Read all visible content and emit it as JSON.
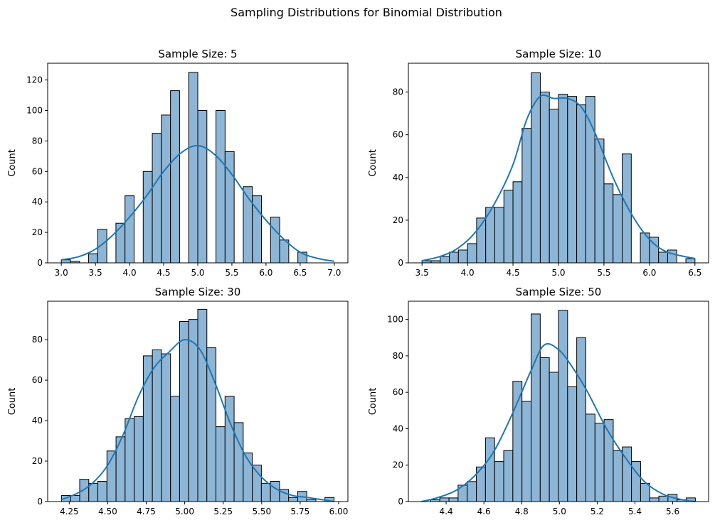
{
  "suptitle": "Sampling Distributions for Binomial Distribution",
  "colors": {
    "bar_fill": "#8db5d5",
    "bar_edge": "#000000",
    "kde": "#1f77b4"
  },
  "chart_data": [
    {
      "type": "bar",
      "title": "Sample Size: 5",
      "ylabel": "Count",
      "xlabel": "",
      "bin_width": 0.13333,
      "bin_start": 3.0,
      "xlim": [
        2.8,
        7.2
      ],
      "ylim": [
        0,
        131
      ],
      "xticks": [
        3.0,
        3.5,
        4.0,
        4.5,
        5.0,
        5.5,
        6.0,
        6.5,
        7.0
      ],
      "xtick_labels": [
        "3.0",
        "3.5",
        "4.0",
        "4.5",
        "5.0",
        "5.5",
        "6.0",
        "6.5",
        "7.0"
      ],
      "yticks": [
        0,
        20,
        40,
        60,
        80,
        100,
        120
      ],
      "counts": [
        2,
        1,
        0,
        6,
        22,
        0,
        26,
        44,
        0,
        60,
        85,
        97,
        113,
        0,
        125,
        100,
        0,
        100,
        73,
        0,
        50,
        44,
        0,
        30,
        15,
        0,
        7,
        0,
        0,
        0
      ],
      "kde": {
        "x": [
          3.0,
          3.25,
          3.5,
          3.75,
          4.0,
          4.25,
          4.5,
          4.75,
          5.0,
          5.25,
          5.5,
          5.75,
          6.0,
          6.25,
          6.5,
          6.75,
          7.0
        ],
        "y": [
          2,
          4,
          9,
          18,
          30,
          44,
          60,
          72,
          77,
          71,
          58,
          42,
          28,
          16,
          7,
          3,
          1
        ]
      }
    },
    {
      "type": "bar",
      "title": "Sample Size: 10",
      "ylabel": "Count",
      "xlabel": "",
      "bin_width": 0.1,
      "bin_start": 3.5,
      "xlim": [
        3.35,
        6.65
      ],
      "ylim": [
        0,
        93.5
      ],
      "xticks": [
        3.5,
        4.0,
        4.5,
        5.0,
        5.5,
        6.0,
        6.5
      ],
      "xtick_labels": [
        "3.5",
        "4.0",
        "4.5",
        "5.0",
        "5.5",
        "6.0",
        "6.5"
      ],
      "yticks": [
        0,
        20,
        40,
        60,
        80
      ],
      "counts": [
        1,
        1,
        3,
        5,
        6,
        9,
        21,
        26,
        26,
        34,
        38,
        63,
        89,
        80,
        72,
        79,
        78,
        74,
        78,
        58,
        37,
        32,
        51,
        0,
        14,
        12,
        5,
        6,
        0,
        2
      ],
      "kde": {
        "x": [
          3.5,
          3.7,
          3.9,
          4.1,
          4.3,
          4.5,
          4.65,
          4.8,
          4.95,
          5.1,
          5.25,
          5.4,
          5.6,
          5.8,
          6.0,
          6.2,
          6.5
        ],
        "y": [
          1,
          3,
          7,
          15,
          28,
          46,
          67,
          78,
          77,
          77,
          73,
          61,
          40,
          23,
          11,
          5,
          2
        ]
      }
    },
    {
      "type": "bar",
      "title": "Sample Size: 30",
      "ylabel": "Count",
      "xlabel": "",
      "bin_width": 0.059,
      "bin_start": 4.2,
      "xlim": [
        4.11,
        6.06
      ],
      "ylim": [
        0,
        99
      ],
      "xticks": [
        4.25,
        4.5,
        4.75,
        5.0,
        5.25,
        5.5,
        5.75,
        6.0
      ],
      "xtick_labels": [
        "4.25",
        "4.50",
        "4.75",
        "5.00",
        "5.25",
        "5.50",
        "5.75",
        "6.00"
      ],
      "yticks": [
        0,
        20,
        40,
        60,
        80
      ],
      "counts": [
        3,
        3,
        11,
        9,
        10,
        25,
        32,
        41,
        42,
        72,
        75,
        73,
        52,
        89,
        90,
        95,
        76,
        37,
        52,
        39,
        24,
        18,
        9,
        10,
        6,
        2,
        5,
        1,
        0,
        2
      ],
      "kde": {
        "x": [
          4.2,
          4.3,
          4.4,
          4.5,
          4.6,
          4.7,
          4.8,
          4.9,
          5.0,
          5.1,
          5.2,
          5.3,
          5.4,
          5.5,
          5.6,
          5.7,
          5.8,
          5.97
        ],
        "y": [
          1,
          4,
          9,
          18,
          33,
          52,
          66,
          74,
          80,
          75,
          58,
          38,
          22,
          12,
          6,
          3,
          2,
          0
        ]
      }
    },
    {
      "type": "bar",
      "title": "Sample Size: 50",
      "ylabel": "Count",
      "xlabel": "",
      "bin_width": 0.04833,
      "bin_start": 4.27,
      "xlim": [
        4.2,
        5.79
      ],
      "ylim": [
        0,
        110
      ],
      "xticks": [
        4.4,
        4.6,
        4.8,
        5.0,
        5.2,
        5.4,
        5.6
      ],
      "xtick_labels": [
        "4.4",
        "4.6",
        "4.8",
        "5.0",
        "5.2",
        "5.4",
        "5.6"
      ],
      "yticks": [
        0,
        20,
        40,
        60,
        80,
        100
      ],
      "counts": [
        0,
        1,
        2,
        2,
        9,
        11,
        19,
        35,
        22,
        28,
        66,
        55,
        103,
        79,
        71,
        105,
        63,
        90,
        48,
        43,
        45,
        28,
        30,
        22,
        10,
        2,
        3,
        4,
        1,
        2
      ],
      "kde": {
        "x": [
          4.27,
          4.35,
          4.45,
          4.55,
          4.65,
          4.75,
          4.85,
          4.92,
          5.0,
          5.08,
          5.15,
          5.25,
          5.35,
          5.45,
          5.55,
          5.65,
          5.72
        ],
        "y": [
          0,
          2,
          6,
          14,
          27,
          48,
          72,
          86,
          83,
          72,
          60,
          40,
          24,
          11,
          4,
          1,
          0
        ]
      }
    }
  ]
}
